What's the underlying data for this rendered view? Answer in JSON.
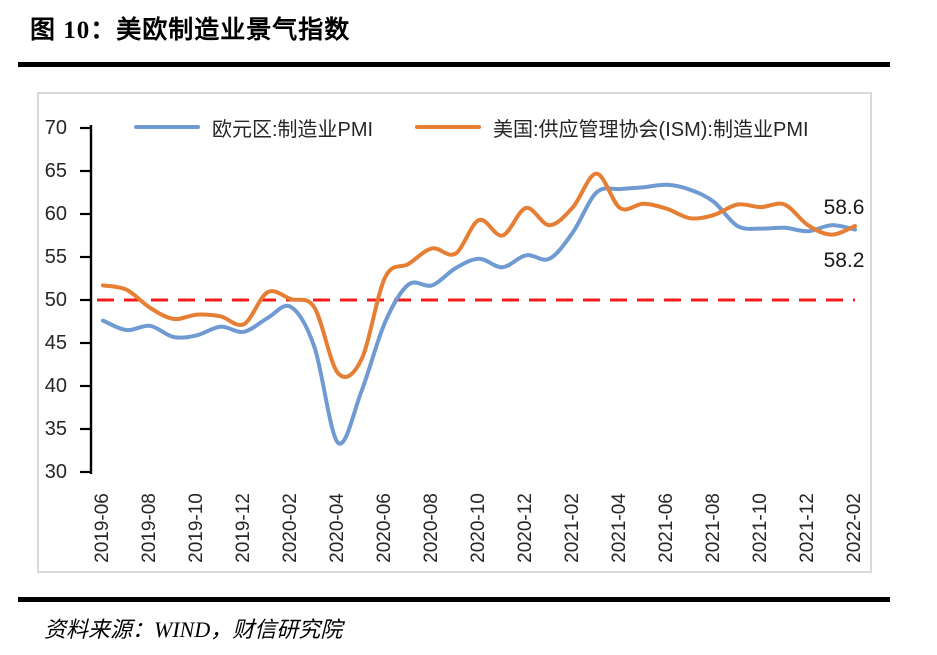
{
  "figure": {
    "title": "图 10：美欧制造业景气指数",
    "source": "资料来源：WIND，财信研究院"
  },
  "chart_data": {
    "type": "line",
    "title": "美欧制造业景气指数",
    "x": [
      "2019-06",
      "2019-07",
      "2019-08",
      "2019-09",
      "2019-10",
      "2019-11",
      "2019-12",
      "2020-01",
      "2020-02",
      "2020-03",
      "2020-04",
      "2020-05",
      "2020-06",
      "2020-07",
      "2020-08",
      "2020-09",
      "2020-10",
      "2020-11",
      "2020-12",
      "2021-01",
      "2021-02",
      "2021-03",
      "2021-04",
      "2021-05",
      "2021-06",
      "2021-07",
      "2021-08",
      "2021-09",
      "2021-10",
      "2021-11",
      "2021-12",
      "2022-01",
      "2022-02"
    ],
    "x_tick_labels": [
      "2019-06",
      "2019-08",
      "2019-10",
      "2019-12",
      "2020-02",
      "2020-04",
      "2020-06",
      "2020-08",
      "2020-10",
      "2020-12",
      "2021-02",
      "2021-04",
      "2021-06",
      "2021-08",
      "2021-10",
      "2021-12",
      "2022-02"
    ],
    "series": [
      {
        "name": "欧元区:制造业PMI",
        "color": "#6f9ad2",
        "end_label": "58.2",
        "values": [
          47.6,
          46.5,
          47.0,
          45.7,
          45.9,
          46.9,
          46.3,
          47.9,
          49.2,
          44.5,
          33.4,
          39.4,
          47.4,
          51.8,
          51.7,
          53.7,
          54.8,
          53.8,
          55.2,
          54.8,
          57.9,
          62.5,
          62.9,
          63.1,
          63.4,
          62.8,
          61.4,
          58.6,
          58.3,
          58.4,
          58.0,
          58.7,
          58.2
        ]
      },
      {
        "name": "美国:供应管理协会(ISM):制造业PMI",
        "color": "#e67e33",
        "end_label": "58.6",
        "values": [
          51.7,
          51.2,
          49.1,
          47.8,
          48.3,
          48.1,
          47.2,
          50.9,
          50.1,
          49.1,
          41.5,
          43.1,
          52.6,
          54.2,
          56.0,
          55.4,
          59.3,
          57.5,
          60.7,
          58.7,
          60.8,
          64.7,
          60.7,
          61.2,
          60.6,
          59.5,
          59.9,
          61.1,
          60.8,
          61.1,
          58.7,
          57.6,
          58.6
        ]
      }
    ],
    "ylim": [
      30,
      70
    ],
    "yticks": [
      70,
      65,
      60,
      55,
      50,
      45,
      40,
      35,
      30
    ],
    "ref_line": {
      "value": 50,
      "color": "#f51b1b",
      "style": "dashed"
    },
    "legend_position": "top",
    "grid": false,
    "axis_color": "#000000"
  }
}
